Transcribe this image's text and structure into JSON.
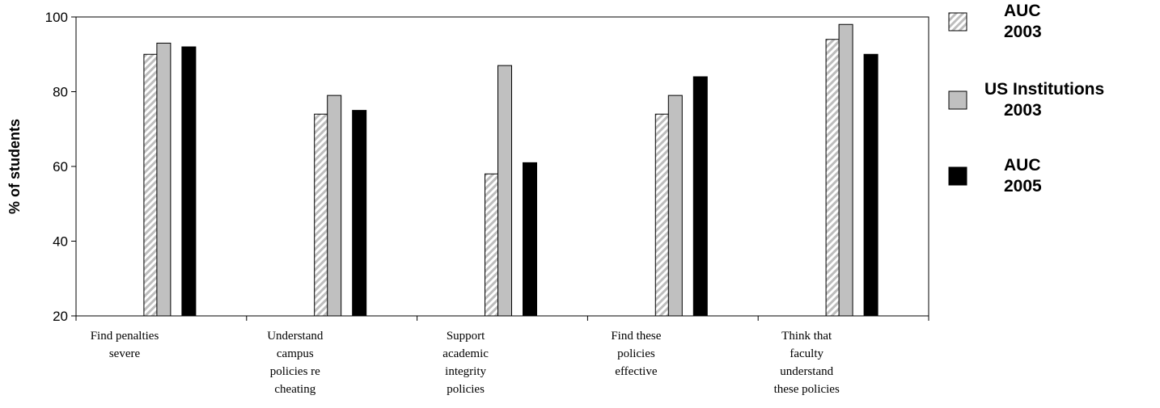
{
  "chart_data": {
    "type": "bar",
    "categories": [
      [
        "Find penalties",
        "severe"
      ],
      [
        "Understand",
        "campus",
        "policies re",
        "cheating"
      ],
      [
        "Support",
        "academic",
        "integrity",
        "policies"
      ],
      [
        "Find these",
        "policies",
        "effective"
      ],
      [
        "Think that",
        "faculty",
        "understand",
        "these policies"
      ]
    ],
    "series": [
      {
        "name": [
          "AUC",
          "2003"
        ],
        "values": [
          90,
          74,
          58,
          74,
          94
        ],
        "fill": "hatch"
      },
      {
        "name": [
          "US Institutions",
          "2003"
        ],
        "values": [
          93,
          79,
          87,
          79,
          98
        ],
        "fill": "#c0c0c0"
      },
      {
        "name": [
          "AUC",
          "2005"
        ],
        "values": [
          92,
          75,
          61,
          84,
          90
        ],
        "fill": "#000000"
      }
    ],
    "title": "",
    "xlabel": "",
    "ylabel": "% of students",
    "ylim": [
      20,
      100
    ],
    "yticks": [
      20,
      40,
      60,
      80,
      100
    ],
    "grid": false,
    "legend_position": "right"
  }
}
